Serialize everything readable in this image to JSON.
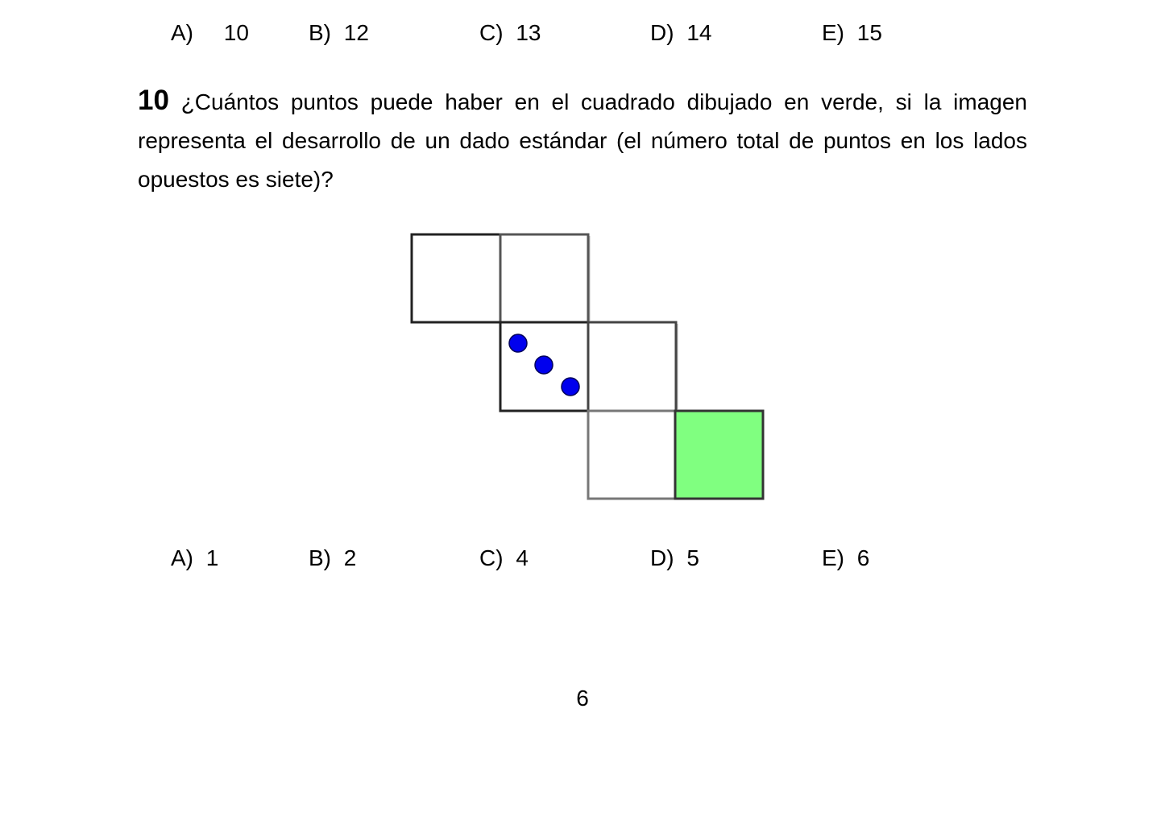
{
  "previous_question": {
    "options": [
      {
        "letter": "A)",
        "value": "10"
      },
      {
        "letter": "B)",
        "value": "12"
      },
      {
        "letter": "C)",
        "value": "13"
      },
      {
        "letter": "D)",
        "value": "14"
      },
      {
        "letter": "E)",
        "value": "15"
      }
    ]
  },
  "question": {
    "number": "10",
    "text": "¿Cuántos puntos puede haber en el cuadrado dibujado en verde, si la imagen representa el desarrollo de un dado estándar (el número total de puntos en los lados opuestos es siete)?",
    "figure": {
      "description_colors": {
        "green_square": "#80ff80",
        "dot_color": "#0000ee",
        "line_color": "#222222"
      },
      "visible_dots_on_face": 3
    },
    "options": [
      {
        "letter": "A)",
        "value": "1"
      },
      {
        "letter": "B)",
        "value": "2"
      },
      {
        "letter": "C)",
        "value": "4"
      },
      {
        "letter": "D)",
        "value": "5"
      },
      {
        "letter": "E)",
        "value": "6"
      }
    ]
  },
  "page_number": "6"
}
